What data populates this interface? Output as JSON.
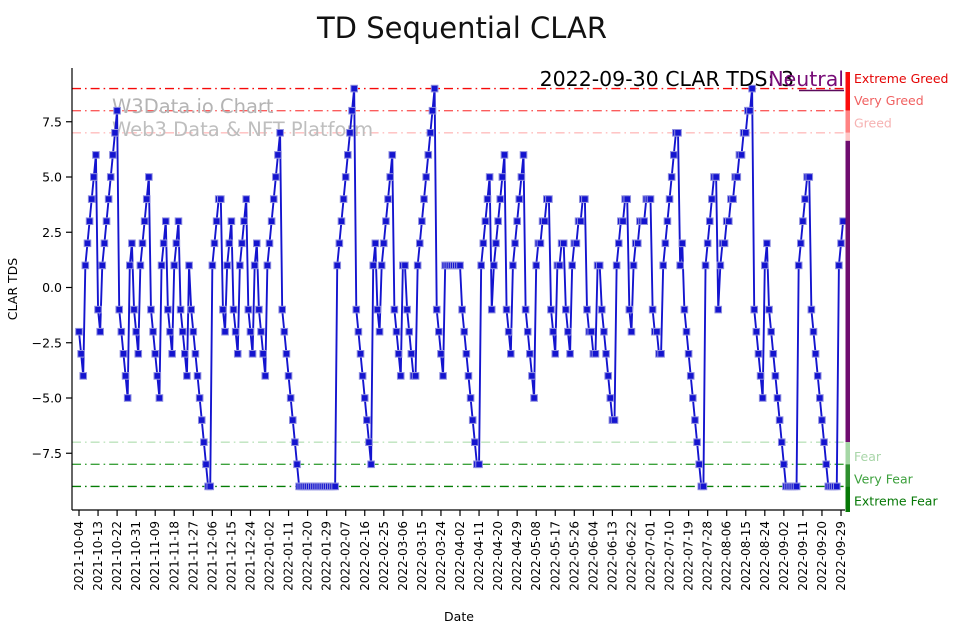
{
  "title": "TD Sequential CLAR",
  "watermark": {
    "line1": "W3Data.io Chart",
    "line2": "Web3 Data & NFT Platform",
    "color1": "#b4b4b4",
    "color2": "#bebebe"
  },
  "annotation": {
    "text": "2022-09-30 CLAR TDS: 3",
    "sentiment": "Neutral",
    "text_color": "#000000",
    "sentiment_color": "#770b77"
  },
  "chart_data": {
    "type": "line",
    "title": "TD Sequential CLAR",
    "xlabel": "Date",
    "ylabel": "CLAR TDS",
    "start_date": "2021-10-04",
    "end_date": "2022-09-30",
    "ylim": [
      -9.9,
      9.9
    ],
    "grid": false,
    "legend": "none",
    "y_ticks": [
      "7.5",
      "5.0",
      "2.5",
      "0.0",
      "−2.5",
      "−5.0",
      "−7.5"
    ],
    "y_tick_values": [
      7.5,
      5.0,
      2.5,
      0.0,
      -2.5,
      -5.0,
      -7.5
    ],
    "x_tick_interval_days": 9,
    "x_tick_labels": [
      "2021-10-04",
      "2021-10-13",
      "2021-10-22",
      "2021-10-31",
      "2021-11-09",
      "2021-11-18",
      "2021-11-27",
      "2021-12-06",
      "2021-12-15",
      "2021-12-24",
      "2022-01-02",
      "2022-01-11",
      "2022-01-20",
      "2022-01-29",
      "2022-02-07",
      "2022-02-16",
      "2022-02-25",
      "2022-03-06",
      "2022-03-15",
      "2022-03-24",
      "2022-04-02",
      "2022-04-11",
      "2022-04-20",
      "2022-04-29",
      "2022-05-08",
      "2022-05-17",
      "2022-05-26",
      "2022-06-04",
      "2022-06-13",
      "2022-06-22",
      "2022-07-01",
      "2022-07-10",
      "2022-07-19",
      "2022-07-28",
      "2022-08-06",
      "2022-08-15",
      "2022-08-24",
      "2022-09-02",
      "2022-09-11",
      "2022-09-20",
      "2022-09-29"
    ],
    "series": [
      {
        "name": "CLAR TDS",
        "color": "#1414cf",
        "marker": "square",
        "marker_edge_color": "#8e8ee0",
        "values": [
          -2,
          -3,
          -4,
          1,
          2,
          3,
          4,
          5,
          6,
          -1,
          -2,
          1,
          2,
          3,
          4,
          5,
          6,
          7,
          8,
          -1,
          -2,
          -3,
          -4,
          -5,
          1,
          2,
          -1,
          -2,
          -3,
          1,
          2,
          3,
          4,
          5,
          -1,
          -2,
          -3,
          -4,
          -5,
          1,
          2,
          3,
          -1,
          -2,
          -3,
          1,
          2,
          3,
          -1,
          -2,
          -3,
          -4,
          1,
          -1,
          -2,
          -3,
          -4,
          -5,
          -6,
          -7,
          -8,
          -9,
          -9,
          1,
          2,
          3,
          4,
          4,
          -1,
          -2,
          1,
          2,
          3,
          -1,
          -2,
          -3,
          1,
          2,
          3,
          4,
          -1,
          -2,
          -3,
          1,
          2,
          -1,
          -2,
          -3,
          -4,
          1,
          2,
          3,
          4,
          5,
          6,
          7,
          -1,
          -2,
          -3,
          -4,
          -5,
          -6,
          -7,
          -8,
          -9,
          -9,
          -9,
          -9,
          -9,
          -9,
          -9,
          -9,
          -9,
          -9,
          -9,
          -9,
          -9,
          -9,
          -9,
          -9,
          -9,
          -9,
          1,
          2,
          3,
          4,
          5,
          6,
          7,
          8,
          9,
          -1,
          -2,
          -3,
          -4,
          -5,
          -6,
          -7,
          -8,
          1,
          2,
          -1,
          -2,
          1,
          2,
          3,
          4,
          5,
          6,
          -1,
          -2,
          -3,
          -4,
          1,
          1,
          -1,
          -2,
          -3,
          -4,
          -4,
          1,
          2,
          3,
          4,
          5,
          6,
          7,
          8,
          9,
          -1,
          -2,
          -3,
          -4,
          1,
          1,
          1,
          1,
          1,
          1,
          1,
          1,
          -1,
          -2,
          -3,
          -4,
          -5,
          -6,
          -7,
          -8,
          -8,
          1,
          2,
          3,
          4,
          5,
          -1,
          1,
          2,
          3,
          4,
          5,
          6,
          -1,
          -2,
          -3,
          1,
          2,
          3,
          4,
          5,
          6,
          -1,
          -2,
          -3,
          -4,
          -5,
          1,
          2,
          2,
          3,
          3,
          4,
          4,
          -1,
          -2,
          -3,
          1,
          1,
          2,
          2,
          -1,
          -2,
          -3,
          1,
          2,
          2,
          3,
          3,
          4,
          4,
          -1,
          -2,
          -2,
          -3,
          -3,
          1,
          1,
          -1,
          -2,
          -3,
          -4,
          -5,
          -6,
          -6,
          1,
          2,
          3,
          3,
          4,
          4,
          -1,
          -2,
          1,
          2,
          2,
          3,
          3,
          3,
          4,
          4,
          4,
          -1,
          -2,
          -2,
          -3,
          -3,
          1,
          2,
          3,
          4,
          5,
          6,
          7,
          7,
          1,
          2,
          -1,
          -2,
          -3,
          -4,
          -5,
          -6,
          -7,
          -8,
          -9,
          -9,
          1,
          2,
          3,
          4,
          5,
          5,
          -1,
          1,
          2,
          2,
          3,
          3,
          4,
          4,
          5,
          5,
          6,
          6,
          7,
          7,
          8,
          8,
          9,
          -1,
          -2,
          -3,
          -4,
          -5,
          1,
          2,
          -1,
          -2,
          -3,
          -4,
          -5,
          -6,
          -7,
          -8,
          -9,
          -9,
          -9,
          -9,
          -9,
          -9,
          1,
          2,
          3,
          4,
          5,
          5,
          -1,
          -2,
          -3,
          -4,
          -5,
          -6,
          -7,
          -8,
          -9,
          -9,
          -9,
          -9,
          -9,
          1,
          2,
          3
        ]
      }
    ],
    "zones": [
      {
        "label": "Extreme Greed",
        "value": 9,
        "line_color": "#f60909",
        "label_color": "#e40404"
      },
      {
        "label": "Very Greed",
        "value": 8,
        "line_color": "#fb5d5d",
        "label_color": "#f06060"
      },
      {
        "label": "Greed",
        "value": 7,
        "line_color": "#ffbdbd",
        "label_color": "#f6b2b2"
      },
      {
        "label": "Fear",
        "value": -7,
        "line_color": "#bce3bc",
        "label_color": "#a9d6a9"
      },
      {
        "label": "Very Fear",
        "value": -8,
        "line_color": "#3da23d",
        "label_color": "#3ca03c"
      },
      {
        "label": "Extreme Fear",
        "value": -9,
        "line_color": "#047d04",
        "label_color": "#067806"
      }
    ],
    "strip_colors": {
      "extreme_greed": "#fb0b0b",
      "very_greed": "#ff8282",
      "greed": "#ffc6c6",
      "neutral": "#6f0c6f",
      "fear": "#a5d7a5",
      "very_fear": "#2e8f2e",
      "extreme_fear": "#067806"
    }
  }
}
